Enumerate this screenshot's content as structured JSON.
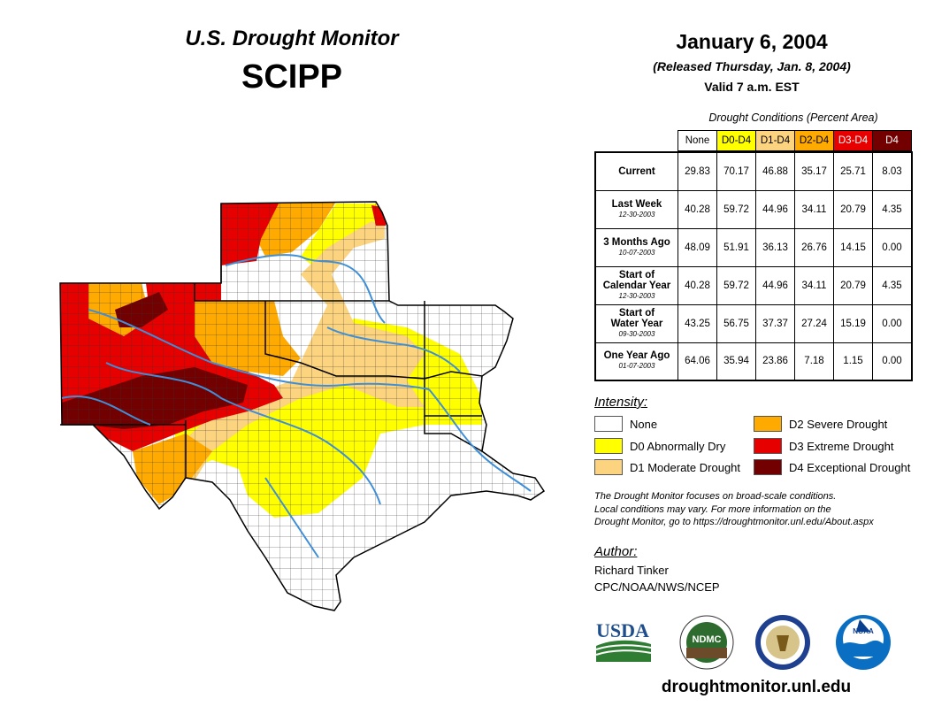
{
  "header": {
    "title_line1": "U.S. Drought Monitor",
    "title_line2": "SCIPP",
    "date": "January 6, 2004",
    "released": "(Released Thursday, Jan. 8, 2004)",
    "valid": "Valid 7 a.m. EST"
  },
  "table": {
    "caption": "Drought Conditions (Percent Area)",
    "columns": [
      {
        "label": "None",
        "bg": "#ffffff",
        "fg": "#000000"
      },
      {
        "label": "D0-D4",
        "bg": "#ffff00",
        "fg": "#000000"
      },
      {
        "label": "D1-D4",
        "bg": "#fcd37f",
        "fg": "#000000"
      },
      {
        "label": "D2-D4",
        "bg": "#ffaa00",
        "fg": "#000000"
      },
      {
        "label": "D3-D4",
        "bg": "#e60000",
        "fg": "#ffffff"
      },
      {
        "label": "D4",
        "bg": "#730000",
        "fg": "#ffffff"
      }
    ],
    "rows": [
      {
        "label": [
          "Current"
        ],
        "date": "",
        "values": [
          "29.83",
          "70.17",
          "46.88",
          "35.17",
          "25.71",
          "8.03"
        ]
      },
      {
        "label": [
          "Last Week"
        ],
        "date": "12-30-2003",
        "values": [
          "40.28",
          "59.72",
          "44.96",
          "34.11",
          "20.79",
          "4.35"
        ]
      },
      {
        "label": [
          "3 Months Ago"
        ],
        "date": "10-07-2003",
        "values": [
          "48.09",
          "51.91",
          "36.13",
          "26.76",
          "14.15",
          "0.00"
        ]
      },
      {
        "label": [
          "Start of",
          "Calendar Year"
        ],
        "date": "12-30-2003",
        "values": [
          "40.28",
          "59.72",
          "44.96",
          "34.11",
          "20.79",
          "4.35"
        ]
      },
      {
        "label": [
          "Start of",
          "Water Year"
        ],
        "date": "09-30-2003",
        "values": [
          "43.25",
          "56.75",
          "37.37",
          "27.24",
          "15.19",
          "0.00"
        ]
      },
      {
        "label": [
          "One Year Ago"
        ],
        "date": "01-07-2003",
        "values": [
          "64.06",
          "35.94",
          "23.86",
          "7.18",
          "1.15",
          "0.00"
        ]
      }
    ]
  },
  "legend": {
    "heading": "Intensity:",
    "items": [
      {
        "label": "None",
        "color": "#ffffff"
      },
      {
        "label": "D0 Abnormally Dry",
        "color": "#ffff00"
      },
      {
        "label": "D1 Moderate Drought",
        "color": "#fcd37f"
      },
      {
        "label": "D2 Severe Drought",
        "color": "#ffaa00"
      },
      {
        "label": "D3 Extreme Drought",
        "color": "#e60000"
      },
      {
        "label": "D4 Exceptional Drought",
        "color": "#730000"
      }
    ]
  },
  "note": {
    "line1": "The Drought Monitor focuses on broad-scale conditions.",
    "line2": "Local conditions may vary. For more information on the",
    "line3": "Drought Monitor, go to https://droughtmonitor.unl.edu/About.aspx"
  },
  "author": {
    "heading": "Author:",
    "name": "Richard Tinker",
    "org": "CPC/NOAA/NWS/NCEP"
  },
  "logos": {
    "usda": "USDA",
    "ndmc": "NDMC",
    "noaa": "NOAA"
  },
  "footer": {
    "site": "droughtmonitor.unl.edu"
  },
  "colors": {
    "none": "#ffffff",
    "d0": "#ffff00",
    "d1": "#fcd37f",
    "d2": "#ffaa00",
    "d3": "#e60000",
    "d4": "#730000",
    "river": "#3f8fd8"
  }
}
